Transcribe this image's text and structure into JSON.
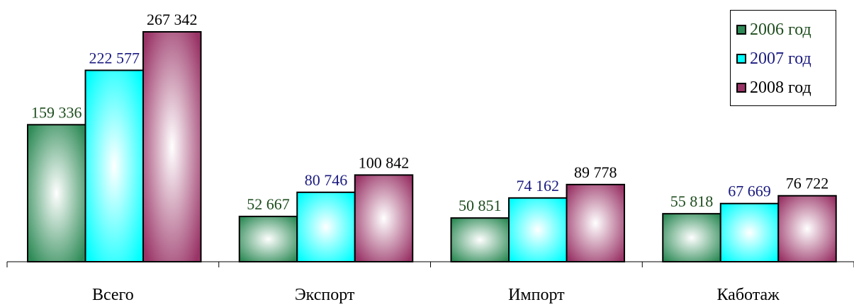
{
  "chart_data": {
    "type": "bar",
    "categories": [
      "Всего",
      "Экспорт",
      "Импорт",
      "Каботаж"
    ],
    "series": [
      {
        "name": "2006 год",
        "values": [
          159336,
          52667,
          50851,
          55818
        ],
        "labels": [
          "159 336",
          "52 667",
          "50 851",
          "55 818"
        ],
        "color": "#2e8b57",
        "label_color": "#1e4d1e"
      },
      {
        "name": "2007 год",
        "values": [
          222577,
          80746,
          74162,
          67669
        ],
        "labels": [
          "222 577",
          "80 746",
          "74 162",
          "67 669"
        ],
        "color": "#00ffff",
        "label_color": "#1a1a80"
      },
      {
        "name": "2008 год",
        "values": [
          267342,
          100842,
          89778,
          76722
        ],
        "labels": [
          "267 342",
          "100 842",
          "89 778",
          "76 722"
        ],
        "color": "#993366",
        "label_color": "#000000"
      }
    ],
    "ylim": [
      0,
      267342
    ],
    "legend_position": "top-right",
    "grid": false,
    "title": "",
    "xlabel": "",
    "ylabel": ""
  }
}
